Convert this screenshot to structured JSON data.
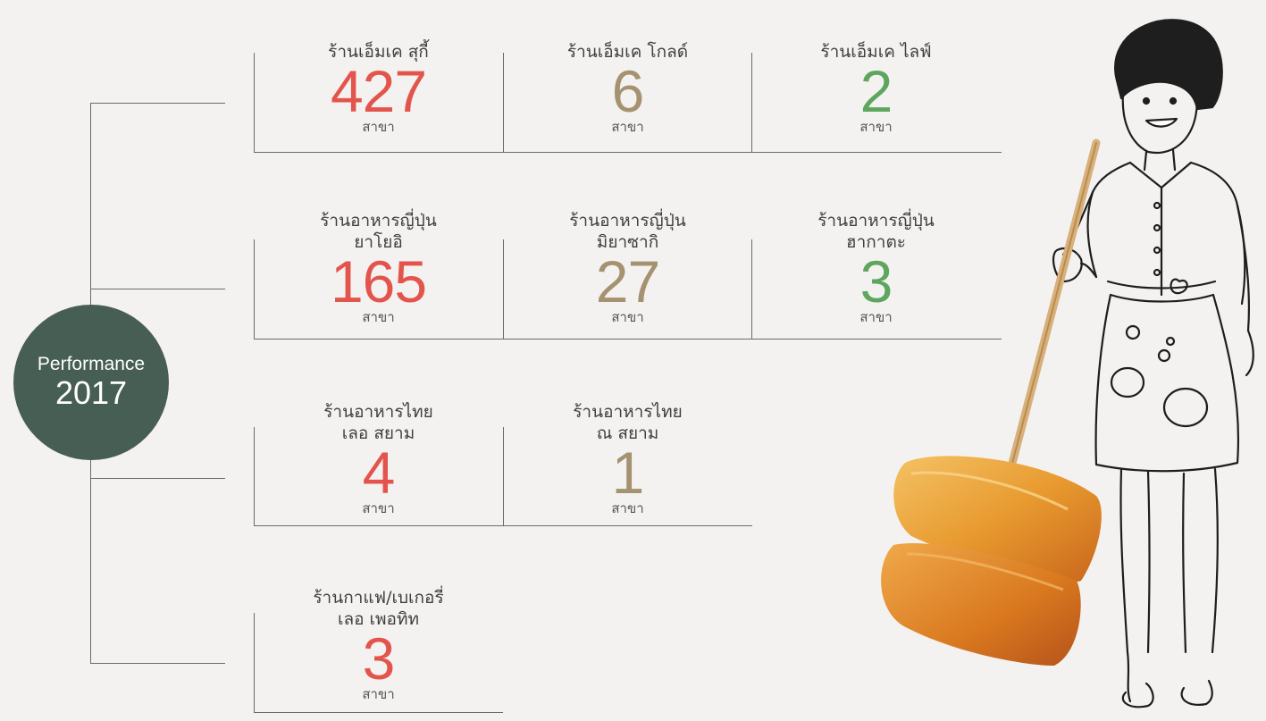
{
  "center": {
    "label": "Performance",
    "year": "2017",
    "color": "#465e53"
  },
  "unit": "สาขา",
  "colors": {
    "red": "#e3554c",
    "tan": "#a59270",
    "green": "#5ea65e",
    "line": "#6b6b6b"
  },
  "rows": [
    {
      "items": [
        {
          "name1": "ร้านเอ็มเค สุกี้",
          "name2": "",
          "count": "427",
          "color": "red"
        },
        {
          "name1": "ร้านเอ็มเค โกลด์",
          "name2": "",
          "count": "6",
          "color": "tan"
        },
        {
          "name1": "ร้านเอ็มเค ไลฟ์",
          "name2": "",
          "count": "2",
          "color": "green"
        }
      ]
    },
    {
      "items": [
        {
          "name1": "ร้านอาหารญี่ปุ่น",
          "name2": "ยาโยอิ",
          "count": "165",
          "color": "red"
        },
        {
          "name1": "ร้านอาหารญี่ปุ่น",
          "name2": "มิยาซากิ",
          "count": "27",
          "color": "tan"
        },
        {
          "name1": "ร้านอาหารญี่ปุ่น",
          "name2": "ฮากาตะ",
          "count": "3",
          "color": "green"
        }
      ]
    },
    {
      "items": [
        {
          "name1": "ร้านอาหารไทย",
          "name2": "เลอ สยาม",
          "count": "4",
          "color": "red"
        },
        {
          "name1": "ร้านอาหารไทย",
          "name2": "ณ สยาม",
          "count": "1",
          "color": "tan"
        }
      ]
    },
    {
      "items": [
        {
          "name1": "ร้านกาแฟ/เบเกอรี่",
          "name2": "เลอ เพอทิท",
          "count": "3",
          "color": "red"
        }
      ]
    }
  ]
}
